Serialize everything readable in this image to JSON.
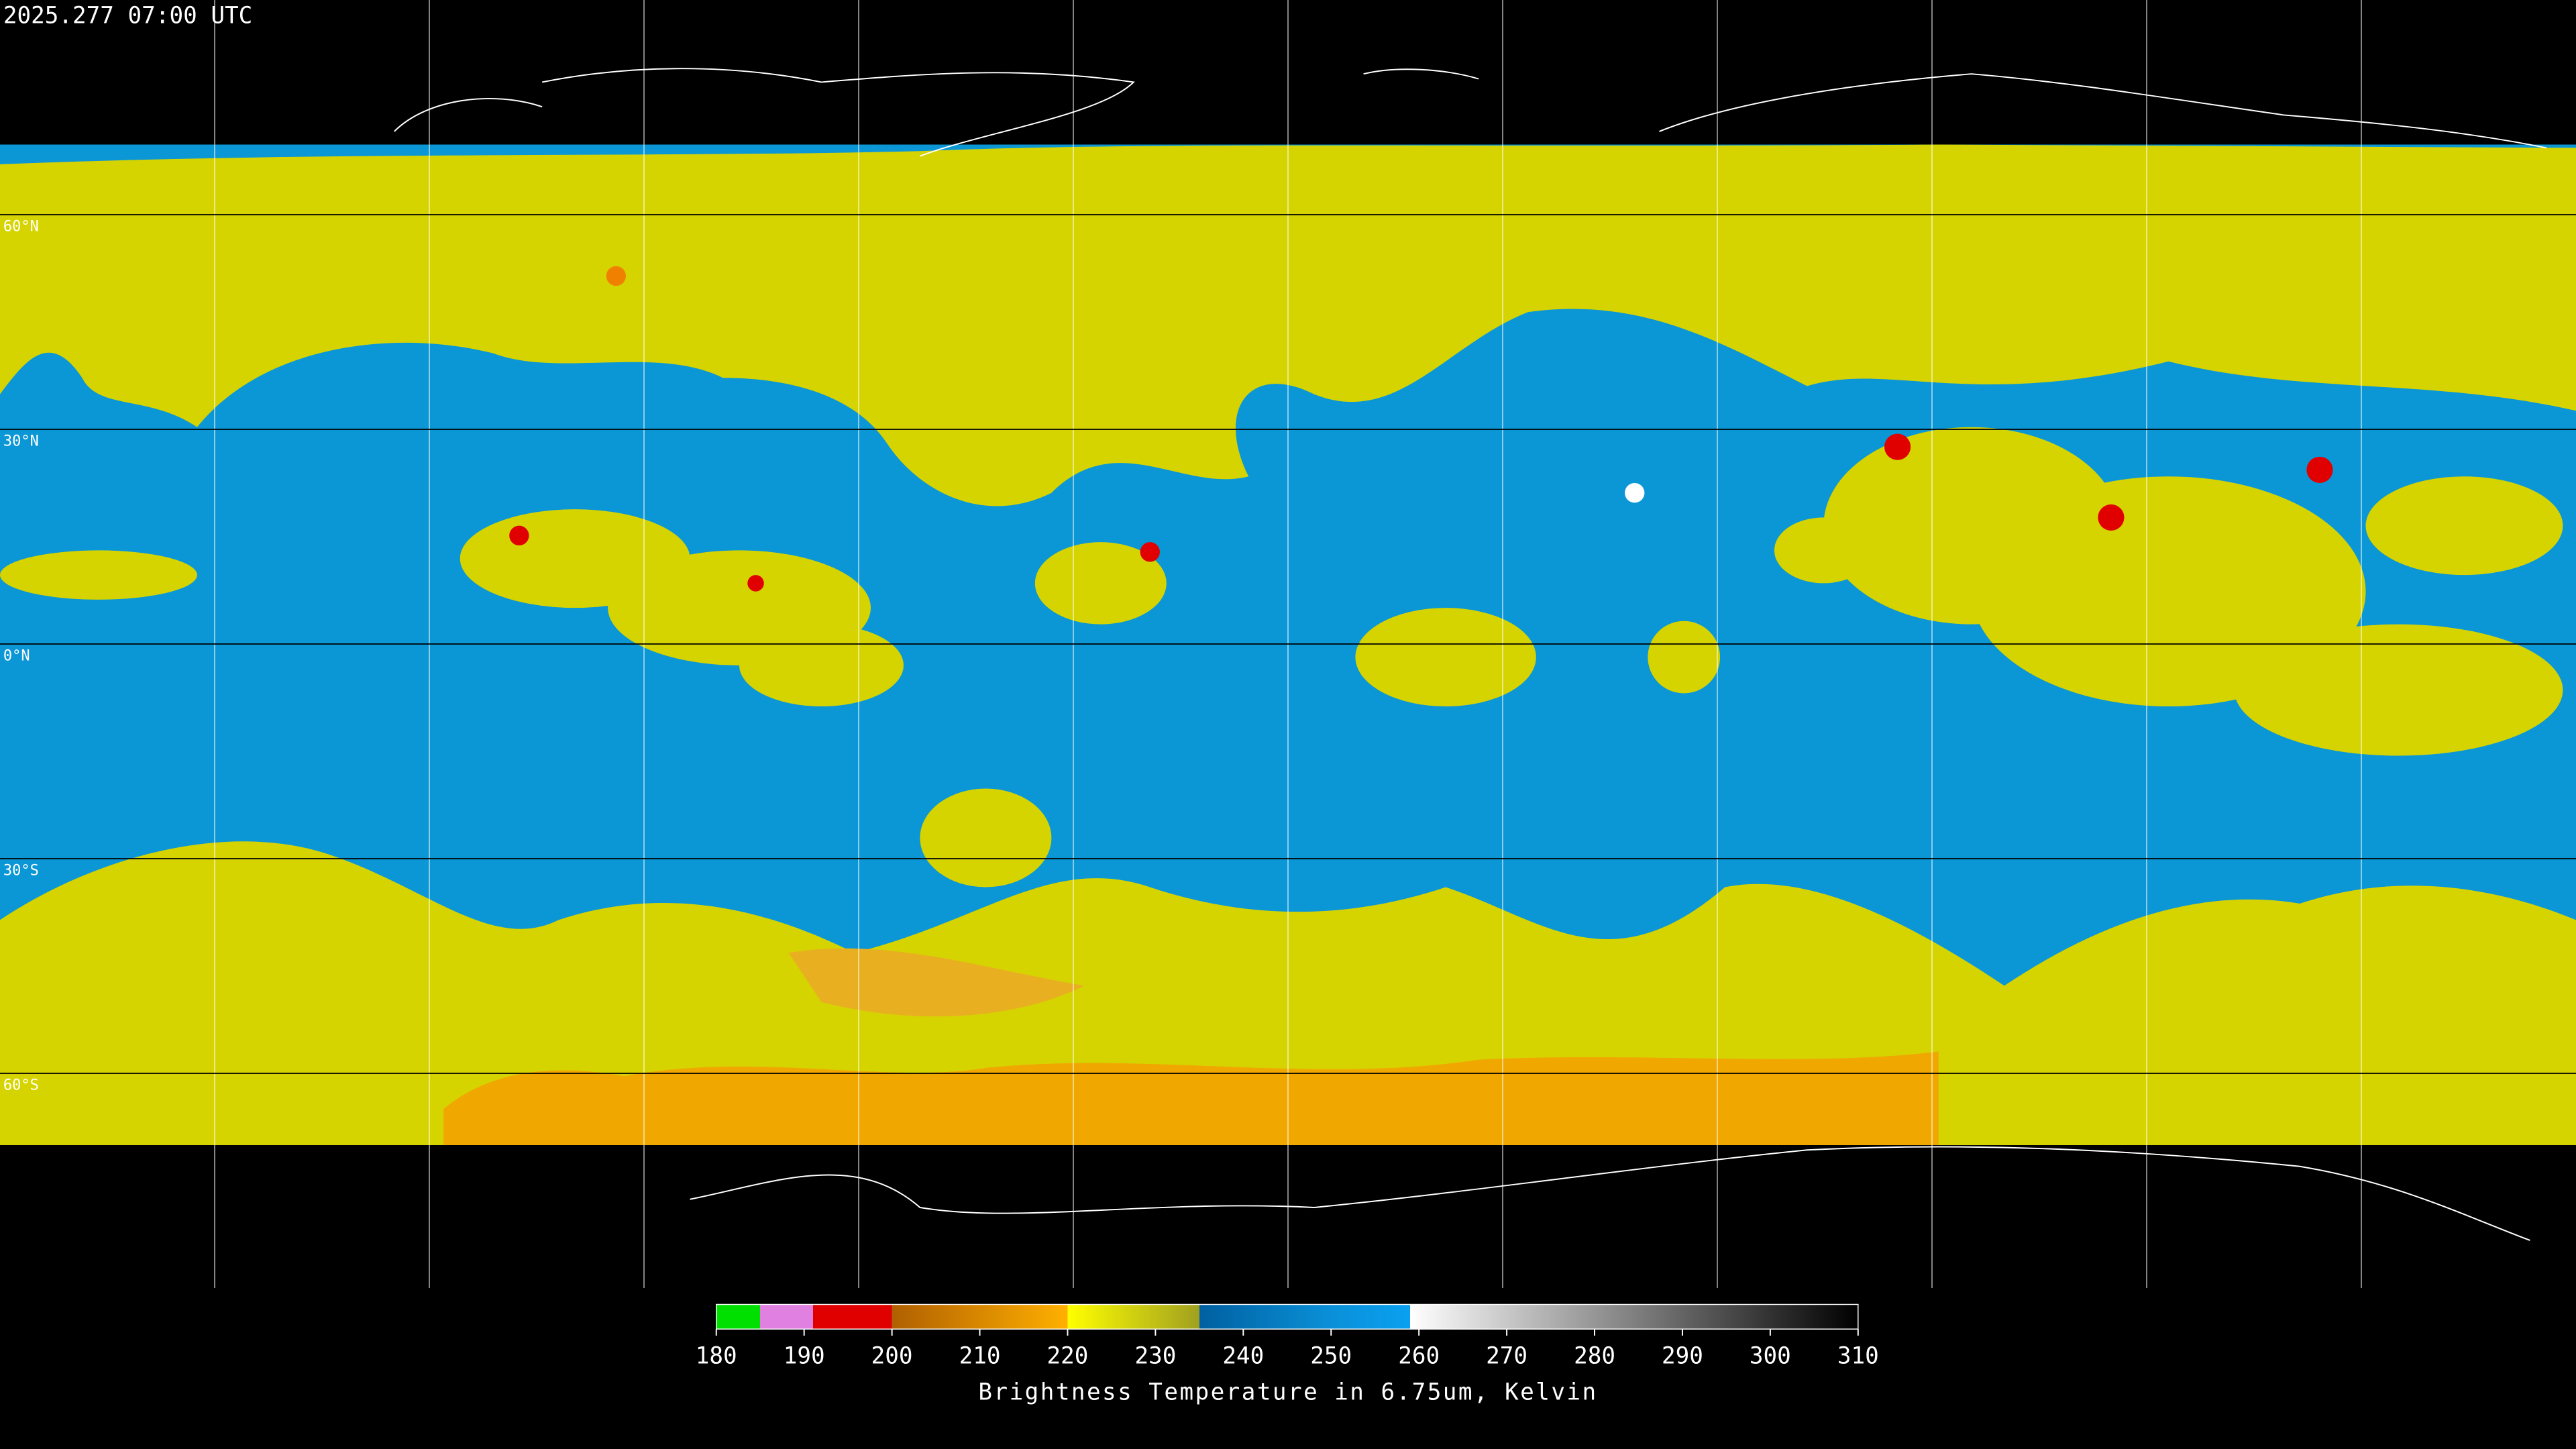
{
  "timestamp": "2025.277 07:00 UTC",
  "latitude_lines": [
    {
      "value": 60,
      "label": "60°N"
    },
    {
      "value": 30,
      "label": "30°N"
    },
    {
      "value": 0,
      "label": "0°N"
    },
    {
      "value": -30,
      "label": "30°S"
    },
    {
      "value": -60,
      "label": "60°S"
    }
  ],
  "colorbar": {
    "title": "Brightness Temperature in 6.75um, Kelvin",
    "range": [
      180,
      310
    ],
    "ticks": [
      180,
      190,
      200,
      210,
      220,
      230,
      240,
      250,
      260,
      270,
      280,
      290,
      300,
      310
    ],
    "stops": [
      {
        "value": 180,
        "color": "#00e000"
      },
      {
        "value": 185,
        "color": "#00e000"
      },
      {
        "value": 185,
        "color": "#e080e0"
      },
      {
        "value": 191,
        "color": "#e080e0"
      },
      {
        "value": 191,
        "color": "#e00000"
      },
      {
        "value": 200,
        "color": "#e00000"
      },
      {
        "value": 200,
        "color": "#b06000"
      },
      {
        "value": 220,
        "color": "#ffb000"
      },
      {
        "value": 220,
        "color": "#ffff00"
      },
      {
        "value": 235,
        "color": "#a0a020"
      },
      {
        "value": 235,
        "color": "#0060a0"
      },
      {
        "value": 250,
        "color": "#0a90d8"
      },
      {
        "value": 259,
        "color": "#0aa0f0"
      },
      {
        "value": 259,
        "color": "#ffffff"
      },
      {
        "value": 310,
        "color": "#000000"
      }
    ]
  }
}
